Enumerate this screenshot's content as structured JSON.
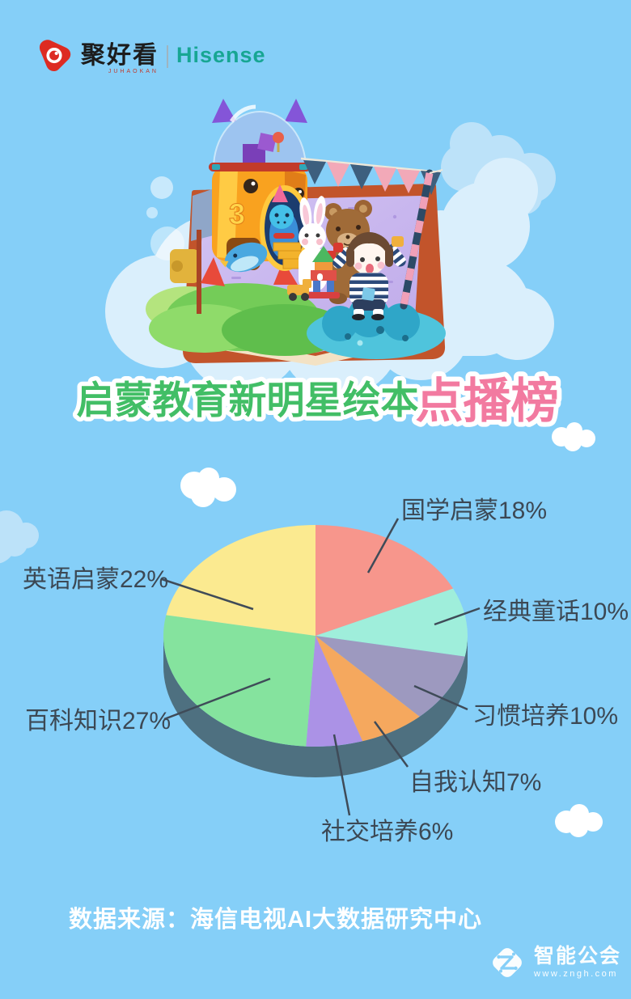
{
  "brand": {
    "cn": "聚好看",
    "cn_sub": "JUHAOKAN",
    "en": "Hisense"
  },
  "title": {
    "part1": "启蒙教育新明星绘本",
    "part2": "点播榜"
  },
  "source": {
    "text": "数据来源：海信电视AI大数据研究中心"
  },
  "watermark": {
    "name": "智能公会",
    "url": "www.zngh.com"
  },
  "chart_data": {
    "type": "pie",
    "style": "3d-ellipse",
    "title": "启蒙教育新明星绘本点播榜",
    "unit": "%",
    "direction": "clockwise",
    "start_angle_deg": 0,
    "categories": [
      "国学启蒙",
      "经典童话",
      "习惯培养",
      "自我认知",
      "社交培养",
      "百科知识",
      "英语启蒙"
    ],
    "values": [
      18,
      10,
      10,
      7,
      6,
      27,
      22
    ],
    "colors": [
      "#F7968C",
      "#9FEEDB",
      "#9D99BF",
      "#F5A85E",
      "#AB92E6",
      "#85E39E",
      "#FBEA90"
    ],
    "depth_color": "#4E7080",
    "label_color": "#3C4854",
    "leader_line_color": "#3F4B58",
    "background_color": "#85CFF8",
    "title_colors": {
      "part1": "#42BE66",
      "part2": "#F27AA0"
    }
  }
}
